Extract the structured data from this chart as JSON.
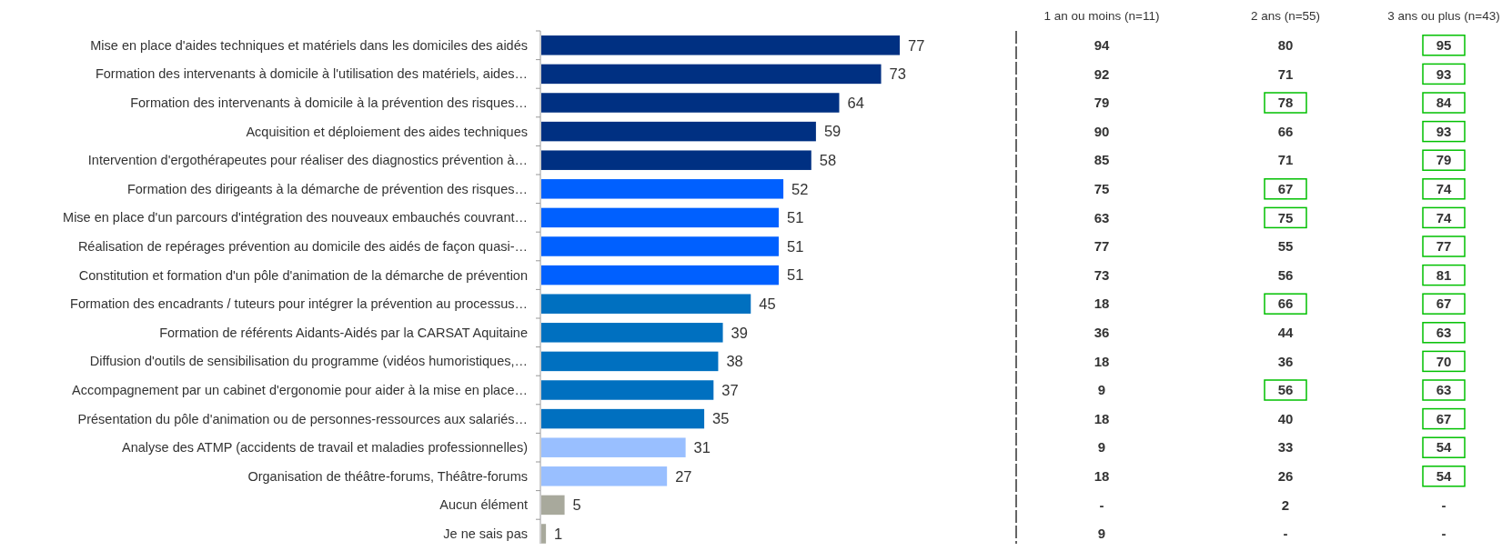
{
  "chart_data": [
    {
      "type": "bar",
      "orientation": "horizontal",
      "data_labels": true,
      "categories": [
        "Mise en place d'aides techniques et matériels dans les domiciles des aidés",
        "Formation des intervenants à domicile à l'utilisation des matériels, aides…",
        "Formation des intervenants à domicile à la prévention des risques…",
        "Acquisition et déploiement des aides techniques",
        "Intervention d'ergothérapeutes pour réaliser des diagnostics prévention à…",
        "Formation des dirigeants à la démarche de prévention des risques…",
        "Mise en place d'un parcours d'intégration des nouveaux embauchés couvrant…",
        "Réalisation de repérages prévention au domicile des aidés de façon quasi-…",
        "Constitution et formation d'un pôle d'animation de la démarche de prévention",
        "Formation des encadrants / tuteurs pour intégrer la prévention au processus…",
        "Formation de référents Aidants-Aidés par la CARSAT Aquitaine",
        "Diffusion d'outils de sensibilisation du programme (vidéos humoristiques,…",
        "Accompagnement par un cabinet d'ergonomie pour aider à la mise en place…",
        "Présentation du pôle d'animation ou de personnes-ressources aux salariés…",
        "Analyse des ATMP (accidents de travail et maladies professionnelles)",
        "Organisation de théâtre-forums, Théâtre-forums",
        "Aucun élément",
        "Je ne sais pas"
      ],
      "values": [
        77,
        73,
        64,
        59,
        58,
        52,
        51,
        51,
        51,
        45,
        39,
        38,
        37,
        35,
        31,
        27,
        5,
        1
      ],
      "colors": [
        "#003082",
        "#003082",
        "#003082",
        "#003082",
        "#003082",
        "#0060ff",
        "#0060ff",
        "#0060ff",
        "#0060ff",
        "#0070c0",
        "#0070c0",
        "#0070c0",
        "#0070c0",
        "#0070c0",
        "#99bfff",
        "#99bfff",
        "#a8a99c",
        "#a8a99c"
      ]
    },
    {
      "type": "other",
      "categories": [
        "1 an ou moins (n=11)",
        "2 ans (n=55)",
        "3 ans ou plus (n=43)"
      ],
      "annotations": [
        "94",
        "80",
        "95",
        "92",
        "71",
        "93",
        "79",
        "78",
        "84",
        "90",
        "66",
        "93",
        "85",
        "71",
        "79",
        "75",
        "67",
        "74",
        "63",
        "75",
        "74",
        "77",
        "55",
        "77",
        "73",
        "56",
        "81",
        "18",
        "66",
        "67",
        "36",
        "44",
        "63",
        "18",
        "36",
        "70",
        "9",
        "56",
        "63",
        "18",
        "40",
        "67",
        "9",
        "33",
        "54",
        "18",
        "26",
        "54",
        "-",
        "2",
        "-",
        "9",
        "-",
        "-"
      ],
      "colors": [
        null,
        null,
        "#00c000",
        null,
        null,
        "#00c000",
        null,
        "#00c000",
        "#00c000",
        null,
        null,
        "#00c000",
        null,
        null,
        "#00c000",
        null,
        "#00c000",
        "#00c000",
        null,
        "#00c000",
        "#00c000",
        null,
        null,
        "#00c000",
        null,
        null,
        "#00c000",
        null,
        "#00c000",
        "#00c000",
        null,
        null,
        "#00c000",
        null,
        null,
        "#00c000",
        null,
        "#00c000",
        "#00c000",
        null,
        null,
        "#00c000",
        null,
        null,
        "#00c000",
        null,
        null,
        "#00c000",
        null,
        null,
        null,
        null,
        null,
        null
      ]
    }
  ]
}
